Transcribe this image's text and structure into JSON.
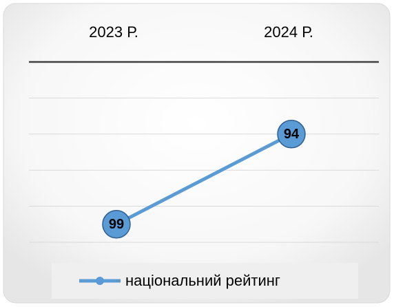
{
  "chart_data": {
    "type": "line",
    "categories": [
      "2023 Р.",
      "2024 Р."
    ],
    "series": [
      {
        "name": "національний рейтинг",
        "color": "#5b9bd5",
        "values": [
          99,
          94
        ]
      }
    ],
    "ylim": [
      90,
      100
    ],
    "yticks": [
      90,
      92,
      94,
      96,
      98,
      100
    ],
    "y_inverted": true,
    "grid": true,
    "legend": "bottom"
  }
}
